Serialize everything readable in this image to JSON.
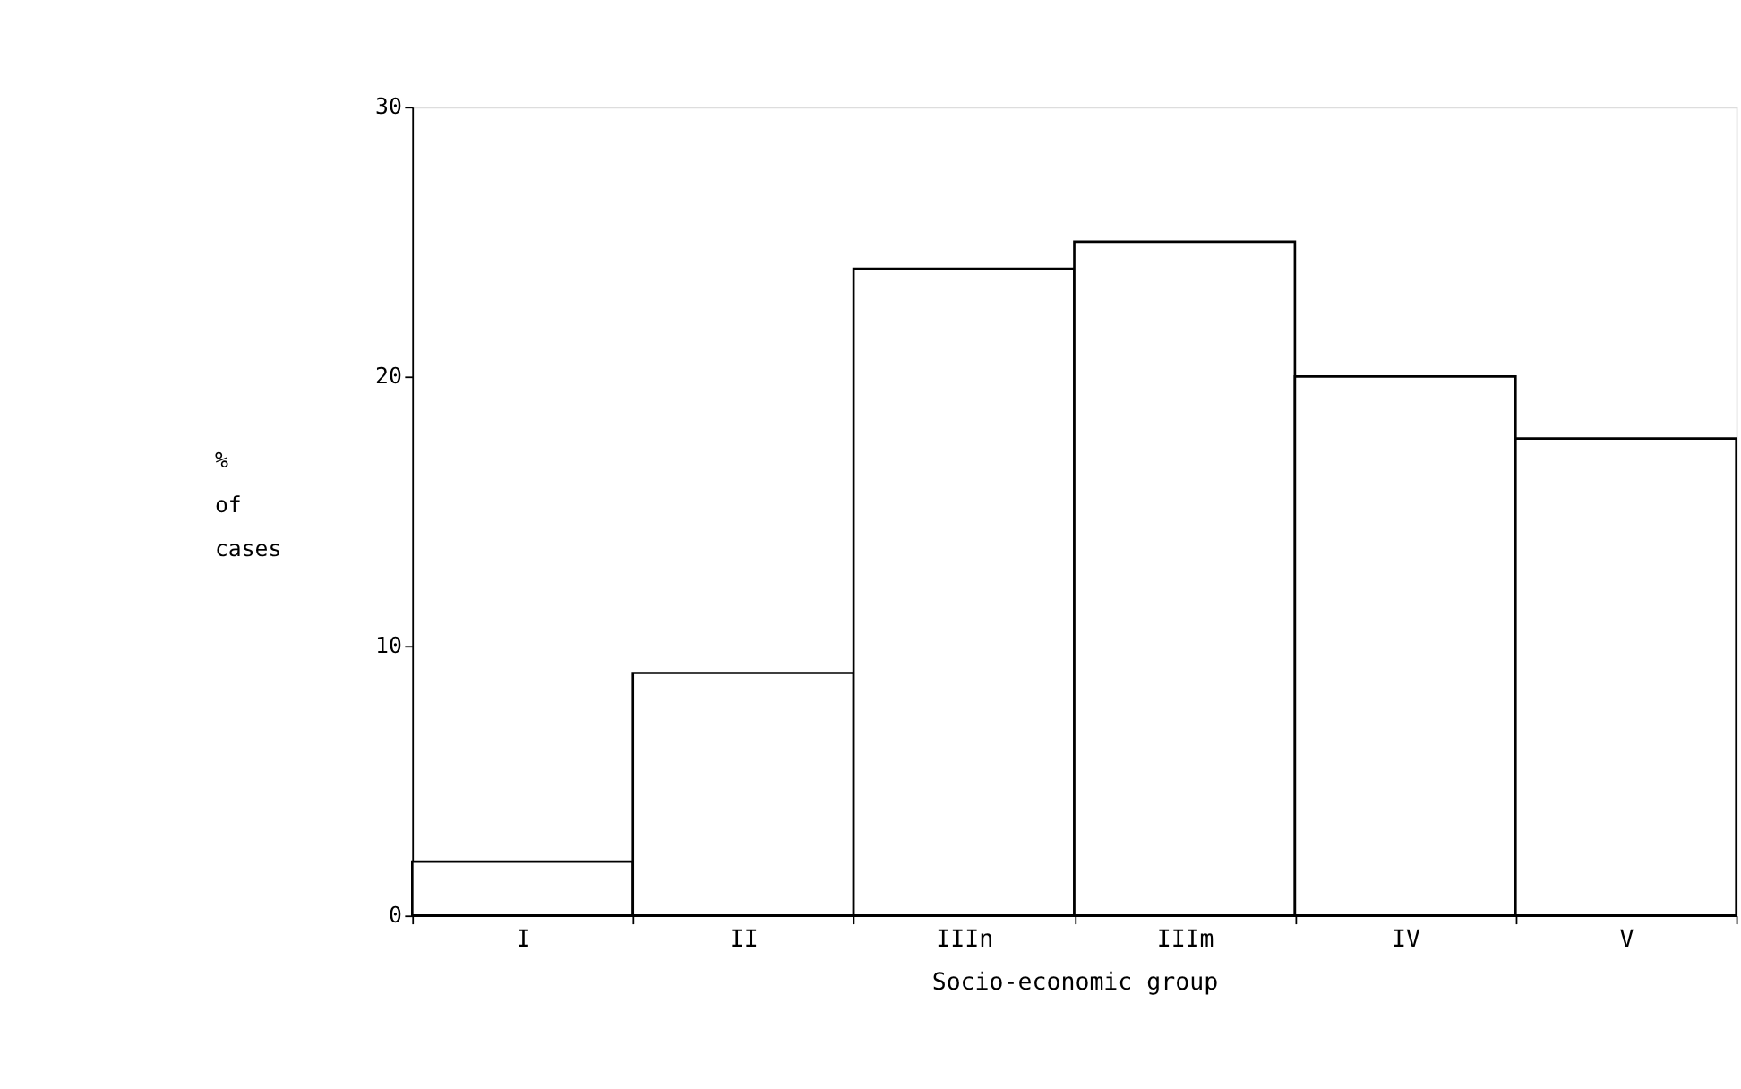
{
  "chart_data": {
    "type": "bar",
    "xlabel": "Socio-economic group",
    "ylabel": "%\nof\ncases",
    "categories": [
      "I",
      "II",
      "IIIn",
      "IIIm",
      "IV",
      "V"
    ],
    "values": [
      2,
      9,
      24,
      25,
      20,
      17.7
    ],
    "color": "#ffffff",
    "ylim": [
      0,
      30
    ],
    "yticks": [
      0,
      10,
      20,
      30
    ],
    "grid": false
  }
}
